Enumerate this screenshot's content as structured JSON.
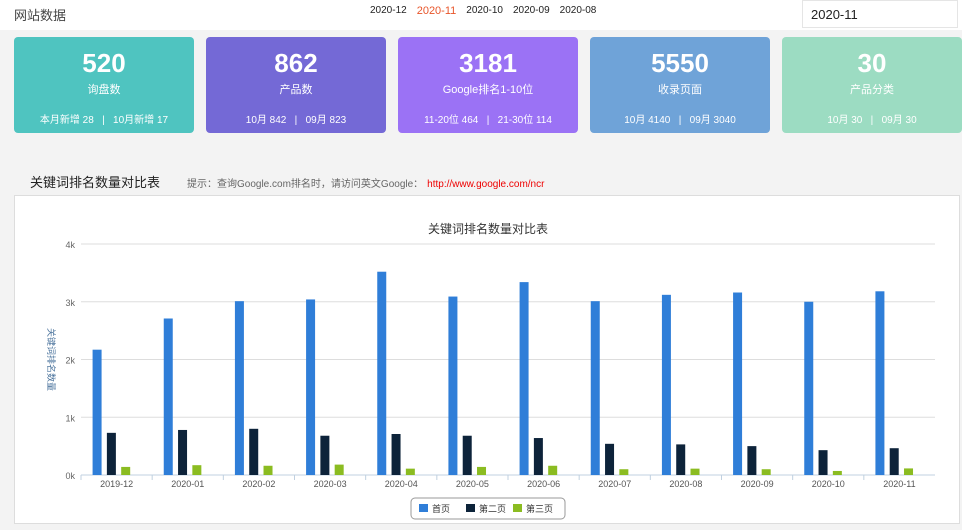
{
  "header": {
    "title": "网站数据",
    "months": [
      "2020-12",
      "2020-11",
      "2020-10",
      "2020-09",
      "2020-08"
    ],
    "active_month": "2020-11",
    "month_input": "2020-11"
  },
  "cards": [
    {
      "value": "520",
      "label": "询盘数",
      "sub": "本月新增 28   |   10月新增 17",
      "color": "#4fc4c0"
    },
    {
      "value": "862",
      "label": "产品数",
      "sub": "10月 842   |   09月 823",
      "color": "#7469d6"
    },
    {
      "value": "3181",
      "label": "Google排名1-10位",
      "sub": "11-20位 464   |   21-30位 114",
      "color": "#9b72f5"
    },
    {
      "value": "5550",
      "label": "收录页面",
      "sub": "10月 4140   |   09月 3040",
      "color": "#6fa3d8"
    },
    {
      "value": "30",
      "label": "产品分类",
      "sub": "10月 30   |   09月 30",
      "color": "#9cdcc2"
    }
  ],
  "section": {
    "title": "关键词排名数量对比表",
    "hint": "提示：查询Google.com排名时，请访问英文Google：",
    "link": "http://www.google.com/ncr"
  },
  "chart_data": {
    "type": "bar",
    "title": "关键词排名数量对比表",
    "ylabel": "关键词排名数量",
    "xlabel": "",
    "ylim": [
      0,
      4000
    ],
    "yticks": [
      "0k",
      "1k",
      "2k",
      "3k",
      "4k"
    ],
    "grid": true,
    "legend": "bottom-center",
    "categories": [
      "2019-12",
      "2020-01",
      "2020-02",
      "2020-03",
      "2020-04",
      "2020-05",
      "2020-06",
      "2020-07",
      "2020-08",
      "2020-09",
      "2020-10",
      "2020-11"
    ],
    "series": [
      {
        "name": "首页",
        "color": "#2f7ed8",
        "values": [
          2170,
          2710,
          3010,
          3040,
          3520,
          3090,
          3340,
          3010,
          3120,
          3160,
          3000,
          3181
        ]
      },
      {
        "name": "第二页",
        "color": "#0d233a",
        "values": [
          730,
          780,
          800,
          680,
          710,
          680,
          640,
          540,
          530,
          500,
          430,
          464
        ]
      },
      {
        "name": "第三页",
        "color": "#8bbc21",
        "values": [
          140,
          170,
          160,
          180,
          110,
          140,
          160,
          100,
          110,
          100,
          70,
          114
        ]
      }
    ]
  }
}
